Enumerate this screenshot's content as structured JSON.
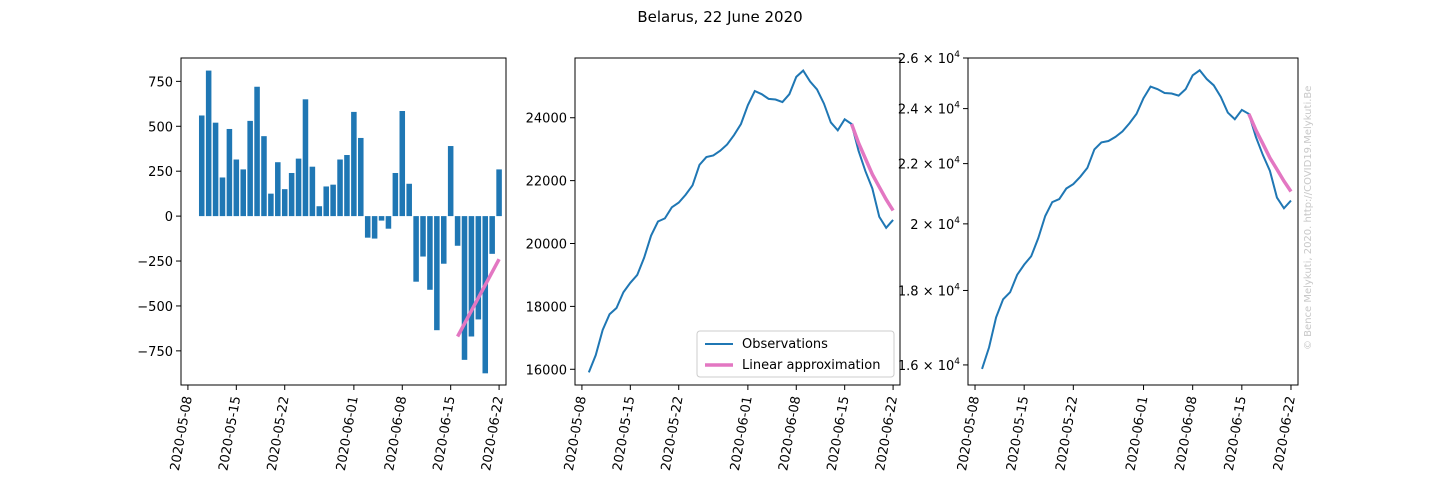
{
  "title": "Belarus, 22 June 2020",
  "credit": "© Bence Melykuti, 2020. http://COVID19.Melykuti.Be",
  "colors": {
    "observations": "#1f77b4",
    "approximation": "#e377c2",
    "axis": "#000000",
    "credit": "#c8c8c8"
  },
  "chart_data": [
    {
      "type": "bar",
      "x_ticks": [
        "2020-05-08",
        "2020-05-15",
        "2020-05-22",
        "2020-06-01",
        "2020-06-08",
        "2020-06-15",
        "2020-06-22"
      ],
      "y_ticks": [
        750,
        500,
        250,
        0,
        -250,
        -500,
        -750
      ],
      "y_tick_labels": [
        "750",
        "500",
        "250",
        "0",
        "−250",
        "−500",
        "−750"
      ],
      "ylim": [
        -940,
        880
      ],
      "xlim": [
        "2020-05-07",
        "2020-06-23"
      ],
      "bars": {
        "start_date": "2020-05-10",
        "values": [
          560,
          810,
          520,
          215,
          485,
          315,
          260,
          530,
          720,
          445,
          125,
          300,
          150,
          240,
          320,
          650,
          275,
          55,
          165,
          175,
          315,
          340,
          580,
          435,
          -120,
          -125,
          -25,
          -70,
          240,
          585,
          180,
          -365,
          -225,
          -410,
          -635,
          -265,
          390,
          -165,
          -800,
          -670,
          -575,
          -875,
          -210,
          260
        ]
      },
      "approximation": {
        "x": [
          "2020-06-16",
          "2020-06-22"
        ],
        "y": [
          -670,
          -240
        ]
      }
    },
    {
      "type": "line",
      "x_ticks": [
        "2020-05-08",
        "2020-05-15",
        "2020-05-22",
        "2020-06-01",
        "2020-06-08",
        "2020-06-15",
        "2020-06-22"
      ],
      "y_ticks": [
        24000,
        22000,
        20000,
        18000,
        16000
      ],
      "y_tick_labels": [
        "24000",
        "22000",
        "20000",
        "18000",
        "16000"
      ],
      "ylim": [
        15500,
        25900
      ],
      "xlim": [
        "2020-05-07",
        "2020-06-23"
      ],
      "observations": {
        "name": "Observations",
        "start_date": "2020-05-09",
        "values": [
          15900,
          16450,
          17250,
          17750,
          17950,
          18450,
          18750,
          19000,
          19550,
          20250,
          20700,
          20800,
          21150,
          21300,
          21550,
          21850,
          22500,
          22750,
          22800,
          22950,
          23150,
          23450,
          23800,
          24400,
          24850,
          24750,
          24600,
          24580,
          24500,
          24750,
          25300,
          25500,
          25150,
          24900,
          24450,
          23850,
          23600,
          23950,
          23800,
          22950,
          22300,
          21750,
          20850,
          20500,
          20750
        ]
      },
      "approximation": {
        "name": "Linear approximation",
        "start_date": "2020-06-16",
        "values": [
          23800,
          23200,
          22700,
          22200,
          21800,
          21400,
          21050
        ]
      },
      "legend": {
        "position": "bottom-right",
        "entries": [
          "Observations",
          "Linear approximation"
        ]
      }
    },
    {
      "type": "line",
      "yscale": "log",
      "x_ticks": [
        "2020-05-08",
        "2020-05-15",
        "2020-05-22",
        "2020-06-01",
        "2020-06-08",
        "2020-06-15",
        "2020-06-22"
      ],
      "y_ticks": [
        26000,
        24000,
        22000,
        20000,
        18000,
        16000
      ],
      "y_tick_labels": [
        {
          "mantissa": "2.6",
          "exp": "4"
        },
        {
          "mantissa": "2.4",
          "exp": "4"
        },
        {
          "mantissa": "2.2",
          "exp": "4"
        },
        {
          "mantissa": "2",
          "exp": "4"
        },
        {
          "mantissa": "1.8",
          "exp": "4"
        },
        {
          "mantissa": "1.6",
          "exp": "4"
        }
      ],
      "ylim": [
        15500,
        26000
      ],
      "xlim": [
        "2020-05-07",
        "2020-06-23"
      ],
      "observations": {
        "name": "Observations",
        "same_as_panel": 1
      },
      "approximation": {
        "name": "Linear approximation",
        "same_as_panel": 1
      }
    }
  ]
}
